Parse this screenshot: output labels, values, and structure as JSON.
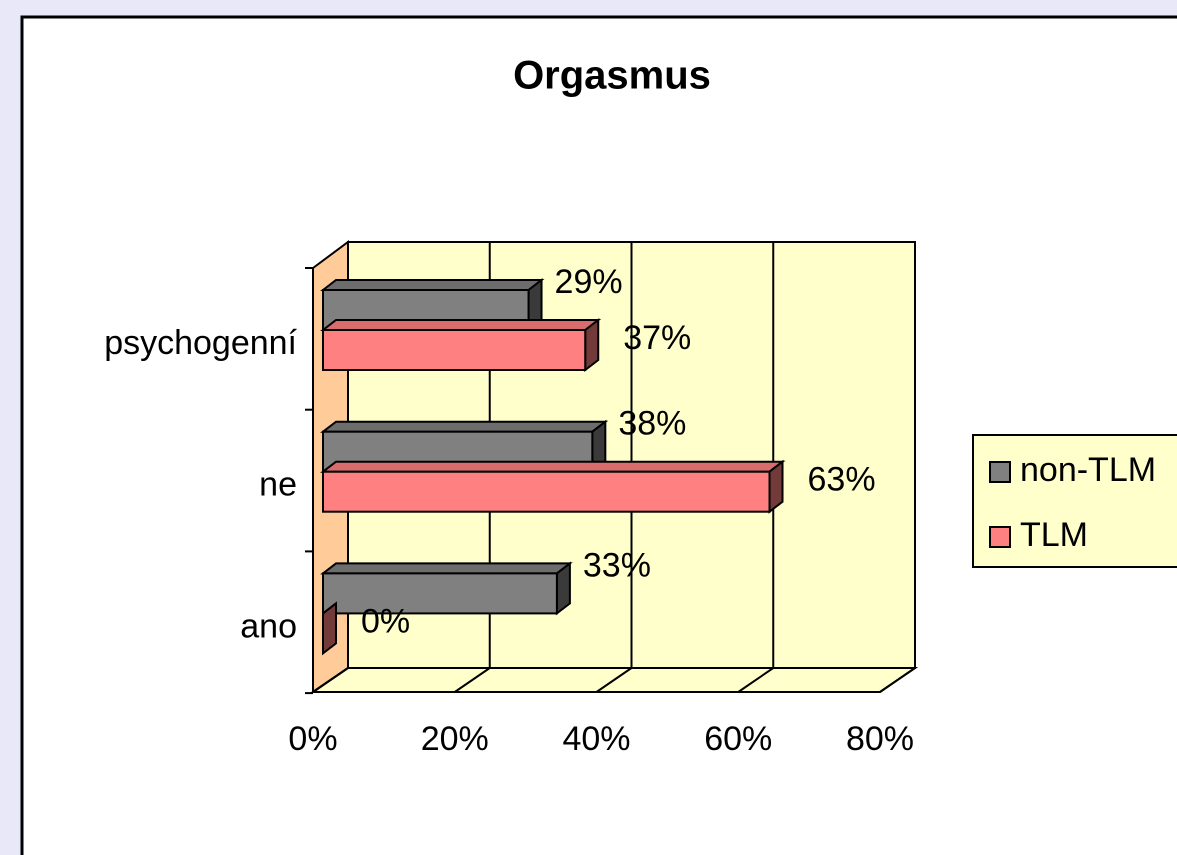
{
  "chart_data": {
    "type": "bar3d_horizontal",
    "title": "Orgasmus",
    "categories": [
      "ano",
      "ne",
      "psychogenní"
    ],
    "series": [
      {
        "name": "non-TLM",
        "color": "#808080",
        "values": [
          33,
          38,
          29
        ],
        "value_labels": [
          "33%",
          "38%",
          "29%"
        ]
      },
      {
        "name": "TLM",
        "color": "#FF8080",
        "values": [
          0,
          63,
          37
        ],
        "value_labels": [
          "0%",
          "63%",
          "37%"
        ]
      }
    ],
    "xlim": [
      0,
      80
    ],
    "xticks": [
      {
        "value": 0,
        "label": "0%"
      },
      {
        "value": 20,
        "label": "20%"
      },
      {
        "value": 40,
        "label": "40%"
      },
      {
        "value": 60,
        "label": "60%"
      },
      {
        "value": 80,
        "label": "80%"
      }
    ],
    "grid": true,
    "legend": "right"
  }
}
